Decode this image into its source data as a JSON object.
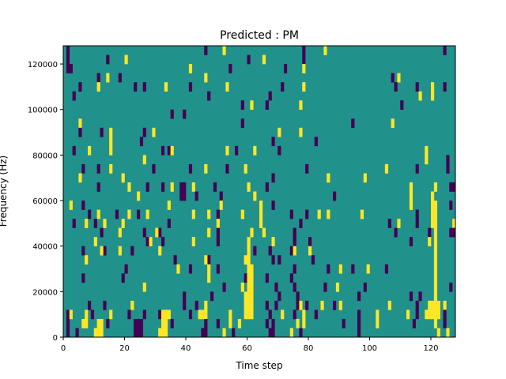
{
  "chart_data": {
    "type": "heatmap",
    "title": "Predicted : PM",
    "xlabel": "Time step",
    "ylabel": "Frequency (Hz)",
    "xlim": [
      0,
      128
    ],
    "ylim": [
      0,
      128000
    ],
    "n_cols": 128,
    "n_rows": 32,
    "row_height_hz": 4000,
    "x_ticks": [
      "0",
      "20",
      "40",
      "60",
      "80",
      "100",
      "120"
    ],
    "y_ticks": [
      "0",
      "20000",
      "40000",
      "60000",
      "80000",
      "100000",
      "120000"
    ],
    "colors": {
      "background": "#21918c",
      "low": "#440154",
      "high": "#fde725"
    },
    "value_legend": {
      "low": 0,
      "background": 1,
      "high": 2
    },
    "rows_top_to_bottom": [
      {
        "dark": [
          1,
          46,
          78,
          124
        ],
        "yellow": [
          52,
          85
        ]
      },
      {
        "dark": [
          1,
          14,
          60,
          78
        ],
        "yellow": [
          20,
          65
        ]
      },
      {
        "dark": [
          1,
          2,
          54,
          72
        ],
        "yellow": [
          41,
          78
        ]
      },
      {
        "dark": [
          11,
          18,
          107
        ],
        "yellow": [
          14,
          46,
          109
        ]
      },
      {
        "dark": [
          5,
          23,
          26,
          41,
          71,
          108,
          115,
          124
        ],
        "yellow": [
          11,
          33,
          53,
          78,
          120
        ]
      },
      {
        "dark": [
          3,
          47,
          67
        ],
        "yellow": [
          116,
          120
        ]
      },
      {
        "dark": [
          58,
          66,
          110
        ],
        "yellow": [
          61,
          77
        ]
      },
      {
        "dark": [
          35,
          39
        ],
        "yellow": []
      },
      {
        "dark": [
          58,
          94
        ],
        "yellow": [
          5,
          107
        ]
      },
      {
        "dark": [
          5,
          12,
          26
        ],
        "yellow": [
          15,
          29,
          70,
          77
        ]
      },
      {
        "dark": [
          25,
          68,
          82
        ],
        "yellow": [
          15
        ]
      },
      {
        "dark": [
          3,
          32,
          34,
          56,
          70
        ],
        "yellow": [
          8,
          15,
          35,
          53,
          62,
          118
        ]
      },
      {
        "dark": [
          125
        ],
        "yellow": [
          26,
          118
        ]
      },
      {
        "dark": [
          6,
          11,
          29,
          41,
          53,
          79,
          115,
          125
        ],
        "yellow": [
          15,
          46,
          59,
          105
        ]
      },
      {
        "dark": [
          68
        ],
        "yellow": [
          5,
          19,
          86,
          98
        ]
      },
      {
        "dark": [
          11,
          27,
          32,
          38,
          39,
          49,
          66,
          126,
          127
        ],
        "yellow": [
          21,
          35,
          42,
          60,
          113,
          121
        ]
      },
      {
        "dark": [
          38,
          39,
          43,
          51,
          88
        ],
        "yellow": [
          24,
          62,
          113,
          120
        ]
      },
      {
        "dark": [
          6,
          68,
          126
        ],
        "yellow": [
          2,
          34,
          51,
          64,
          113,
          120,
          121
        ]
      },
      {
        "dark": [
          8,
          17,
          24,
          50,
          74,
          79,
          115
        ],
        "yellow": [
          11,
          21,
          27,
          42,
          47,
          58,
          64,
          83,
          86,
          97,
          120,
          121
        ]
      },
      {
        "dark": [
          3,
          10,
          34,
          77,
          106,
          115
        ],
        "yellow": [
          7,
          13,
          19,
          50,
          64,
          109,
          120,
          121,
          127
        ]
      },
      {
        "dark": [
          12,
          26,
          31,
          50,
          75,
          108,
          119,
          126,
          127
        ],
        "yellow": [
          18,
          30,
          47,
          61,
          65,
          121
        ]
      },
      {
        "dark": [
          27,
          32,
          50,
          75,
          80,
          113
        ],
        "yellow": [
          10,
          28,
          42,
          60,
          68,
          119,
          121
        ]
      },
      {
        "dark": [
          6,
          13,
          22,
          62,
          67,
          74
        ],
        "yellow": [
          12,
          18,
          31,
          60,
          75,
          80,
          121
        ]
      },
      {
        "dark": [
          36,
          47,
          68,
          70,
          81
        ],
        "yellow": [
          7,
          46,
          59,
          60,
          121
        ]
      },
      {
        "dark": [
          20,
          41,
          50,
          75,
          86,
          94,
          105
        ],
        "yellow": [
          37,
          47,
          60,
          61,
          90,
          99,
          121
        ]
      },
      {
        "dark": [
          6,
          19,
          59,
          66,
          74
        ],
        "yellow": [
          47,
          60,
          61,
          121
        ]
      },
      {
        "dark": [
          52,
          69,
          75,
          85,
          98,
          126
        ],
        "yellow": [
          26,
          58,
          60,
          61,
          89,
          121
        ]
      },
      {
        "dark": [
          39,
          48,
          70,
          76,
          96,
          113,
          116
        ],
        "yellow": [
          59,
          60,
          61,
          121
        ]
      },
      {
        "dark": [
          8,
          13,
          39,
          43,
          66,
          69,
          76,
          79,
          88,
          115
        ],
        "yellow": [
          22,
          46,
          59,
          60,
          61,
          77,
          84,
          90,
          106,
          119,
          120,
          121,
          122,
          124
        ]
      },
      {
        "dark": [
          1,
          9,
          21,
          26,
          31,
          41,
          67,
          75,
          82,
          96,
          115,
          124
        ],
        "yellow": [
          2,
          7,
          15,
          32,
          33,
          34,
          44,
          45,
          46,
          54,
          59,
          60,
          61,
          71,
          78,
          102,
          112,
          118,
          119,
          120,
          121,
          122
        ]
      },
      {
        "dark": [
          1,
          14,
          23,
          24,
          25,
          35,
          46,
          50,
          66,
          68,
          91,
          96,
          114,
          124
        ],
        "yellow": [
          6,
          7,
          11,
          12,
          32,
          33,
          54,
          57,
          76,
          78,
          102,
          121
        ]
      },
      {
        "dark": [
          1,
          4,
          23,
          24,
          25,
          45,
          46,
          55,
          67,
          68,
          77,
          96
        ],
        "yellow": [
          10,
          11,
          12,
          31,
          32,
          33,
          52,
          74,
          122,
          125
        ]
      }
    ]
  }
}
